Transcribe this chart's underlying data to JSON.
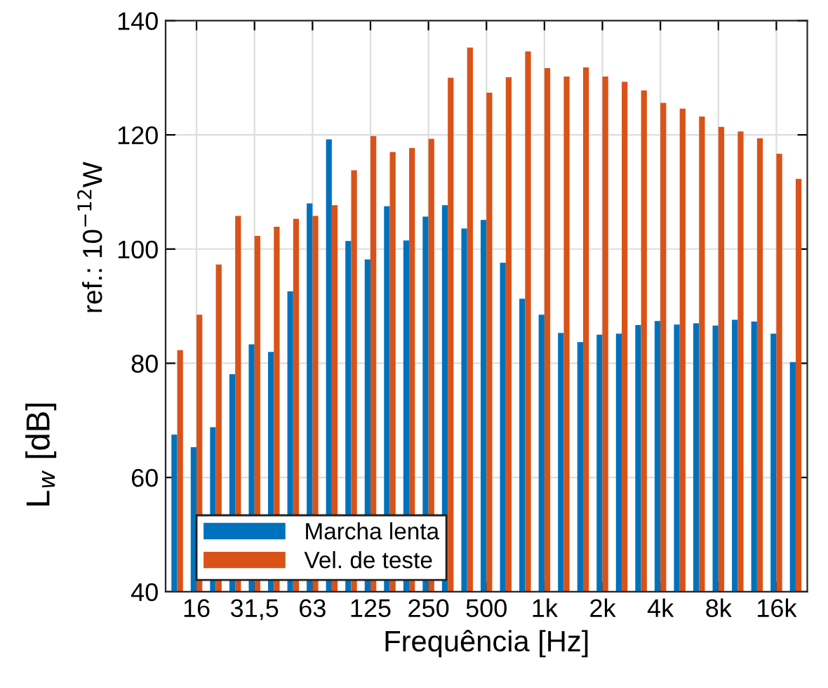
{
  "chart_data": {
    "type": "bar",
    "categories": [
      null,
      "16",
      null,
      null,
      "31,5",
      null,
      null,
      "63",
      null,
      null,
      "125",
      null,
      null,
      "250",
      null,
      null,
      "500",
      null,
      null,
      "1k",
      null,
      null,
      "2k",
      null,
      null,
      "4k",
      null,
      null,
      "8k",
      null,
      null,
      "16k",
      null
    ],
    "series": [
      {
        "name": "Marcha lenta",
        "color": "#0072bd",
        "values": [
          67.5,
          65.3,
          68.8,
          78.1,
          83.3,
          82.0,
          92.6,
          108.0,
          119.2,
          101.4,
          98.2,
          107.5,
          101.5,
          105.7,
          107.7,
          103.6,
          105.1,
          97.6,
          91.3,
          88.5,
          85.3,
          83.7,
          85.0,
          85.2,
          86.7,
          87.4,
          86.8,
          87.0,
          86.6,
          87.6,
          87.3,
          85.2,
          80.2
        ]
      },
      {
        "name": "Vel. de teste",
        "color": "#d95319",
        "values": [
          82.3,
          88.5,
          97.3,
          105.8,
          102.3,
          103.9,
          105.3,
          105.8,
          107.7,
          113.8,
          119.8,
          117.0,
          117.7,
          119.3,
          130.0,
          135.3,
          127.4,
          130.1,
          134.6,
          131.7,
          130.2,
          131.8,
          130.2,
          129.3,
          127.8,
          125.6,
          124.6,
          123.2,
          121.4,
          120.6,
          119.4,
          116.7,
          112.3
        ]
      }
    ],
    "xlabel": "Frequência [Hz]",
    "ylabel": "L$_{w}$ [dB]",
    "annotations": [
      "ref.: 10$^{−12}$W"
    ],
    "ylim": [
      40,
      140
    ],
    "yticks": [
      40,
      60,
      80,
      100,
      120,
      140
    ],
    "grid": true,
    "legend": "bottom left"
  }
}
